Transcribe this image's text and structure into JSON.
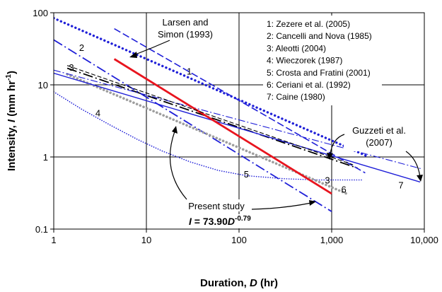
{
  "chart_data": {
    "type": "line",
    "xlabel_text": "Duration, ",
    "xlabel_var": "D",
    "xlabel_unit": " (hr)",
    "ylabel_text": "Intensity, ",
    "ylabel_var": "I",
    "ylabel_unit": "  (mm hr",
    "ylabel_exp": "-1",
    "ylabel_close": ")",
    "xscale": "log",
    "yscale": "log",
    "xlim": [
      1,
      10000
    ],
    "ylim": [
      0.1,
      100
    ],
    "grid": true,
    "x_ticks": [
      {
        "value": 1,
        "label": "1"
      },
      {
        "value": 10,
        "label": "10"
      },
      {
        "value": 100,
        "label": "100"
      },
      {
        "value": 1000,
        "label": "1,000"
      },
      {
        "value": 10000,
        "label": "10,000"
      }
    ],
    "y_ticks": [
      {
        "value": 0.1,
        "label": "0.1"
      },
      {
        "value": 1,
        "label": "1"
      },
      {
        "value": 10,
        "label": "10"
      },
      {
        "value": 100,
        "label": "100"
      }
    ],
    "legend_placement": "top-right",
    "legend": [
      "1: Zezere et al. (2005)",
      "2: Cancelli and Nova (1985)",
      "3: Aleotti (2004)",
      "4: Wieczorek (1987)",
      "5: Crosta and Fratini (2001)",
      "6: Ceriani et al. (1992)",
      "7: Caine (1980)"
    ],
    "series": [
      {
        "id": "1",
        "color": "#1f1fd8",
        "style": "bold-dotted",
        "x": [
          1,
          2400
        ],
        "y": [
          84,
          1.03
        ]
      },
      {
        "id": "2",
        "color": "#1f1fd8",
        "style": "dashdot",
        "x": [
          1,
          1000
        ],
        "y": [
          42,
          0.175
        ]
      },
      {
        "id": "3",
        "color": "#000000",
        "style": "dashdot",
        "x": [
          1.4,
          1900
        ],
        "y": [
          17,
          0.7
        ]
      },
      {
        "id": "4",
        "color": "#1f1fd8",
        "style": "dotted",
        "x": [
          1,
          2,
          4,
          8,
          15,
          30,
          60,
          120,
          300,
          700,
          2200
        ],
        "y": [
          8,
          4.6,
          2.8,
          1.75,
          1.2,
          0.85,
          0.65,
          0.55,
          0.5,
          0.48,
          0.48
        ]
      },
      {
        "id": "6",
        "color": "#9e9e9e",
        "style": "dotted-thick",
        "x": [
          1.4,
          1450
        ],
        "y": [
          14,
          0.31
        ]
      },
      {
        "id": "7",
        "color": "#1f1fd8",
        "style": "solid",
        "x": [
          1,
          9000
        ],
        "y": [
          14.5,
          0.45
        ]
      },
      {
        "id": "Larsen and Simon (1993)",
        "color": "#1f1fd8",
        "style": "dashed",
        "x": [
          4.5,
          2300
        ],
        "y": [
          60,
          0.6
        ]
      },
      {
        "id": "Guzzeti et al. (2007)",
        "color": "#1f1fd8",
        "style": "dashdot-thin",
        "x": [
          1,
          9500
        ],
        "y": [
          16,
          0.68
        ]
      },
      {
        "id": "Present study",
        "color": "#e8141e",
        "style": "solid-thick",
        "x": [
          4.5,
          1000
        ],
        "y": [
          22.8,
          0.31
        ]
      },
      {
        "id": "extra-dashed",
        "color": "#000000",
        "style": "dashed-thin",
        "x": [
          1.4,
          1700
        ],
        "y": [
          18.5,
          0.78
        ]
      }
    ],
    "curve_labels": [
      {
        "text": "1",
        "x": 29,
        "y": 15.5
      },
      {
        "text": "2",
        "x": 2.0,
        "y": 33
      },
      {
        "text": "3",
        "x": 1.55,
        "y": 17.5
      },
      {
        "text": "4",
        "x": 3.0,
        "y": 4.1
      },
      {
        "text": "5",
        "x": 120,
        "y": 0.58
      },
      {
        "text": "3",
        "x": 900,
        "y": 0.48
      },
      {
        "text": "6",
        "x": 1350,
        "y": 0.36
      },
      {
        "text": "7",
        "x": 5600,
        "y": 0.41
      }
    ],
    "annotations": {
      "larsen_line1": "Larsen and",
      "larsen_line2": "Simon (1993)",
      "guzzetti_line1": "Guzzeti et al.",
      "guzzetti_line2": "(2007)",
      "present": "Present study",
      "eq_prefix": "I",
      "eq_mid": " = 73.90",
      "eq_var": "D",
      "eq_exp": "-0.79"
    }
  }
}
